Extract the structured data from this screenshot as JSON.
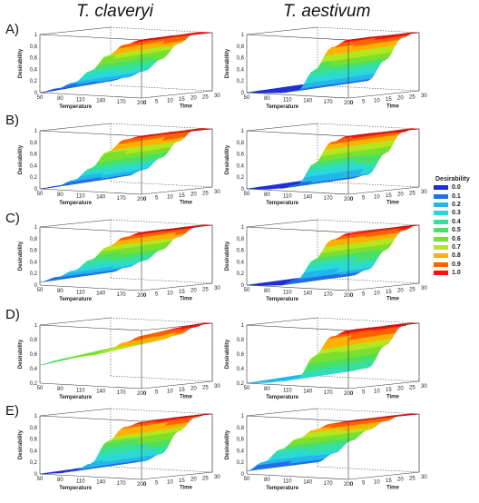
{
  "column_titles": [
    "T. claveryi",
    "T. aestivum"
  ],
  "row_labels": [
    "A)",
    "B)",
    "C)",
    "D)",
    "E)"
  ],
  "colors": {
    "0.0": "#1f2cd6",
    "0.1": "#1f6fe8",
    "0.2": "#22b6ea",
    "0.3": "#2ad8d8",
    "0.4": "#34e0a0",
    "0.5": "#4be062",
    "0.6": "#78e02e",
    "0.7": "#b4e61e",
    "0.8": "#ffb000",
    "0.9": "#ff6000",
    "1.0": "#ff1010"
  },
  "legend": {
    "title": "Desirability",
    "items": [
      "0.0",
      "0.1",
      "0.2",
      "0.3",
      "0.4",
      "0.5",
      "0.6",
      "0.7",
      "0.8",
      "0.9",
      "1.0"
    ]
  },
  "chart_data": [
    {
      "panel": "A) T. claveryi",
      "type": "surface",
      "zlabel": "Desirability",
      "xlabel": "Temperature",
      "ylabel": "Time",
      "zticks": [
        "0",
        "0,2",
        "0,4",
        "0,6",
        "0,8",
        "1"
      ],
      "xticks": [
        "50",
        "80",
        "110",
        "140",
        "170",
        "200"
      ],
      "yticks": [
        "0",
        "5",
        "10",
        "15",
        "20",
        "25",
        "30"
      ],
      "zlim": [
        0,
        1
      ],
      "xlim": [
        50,
        200
      ],
      "ylim": [
        0,
        30
      ],
      "profile": [
        0.0,
        0.08,
        0.2,
        0.42,
        0.7,
        0.9,
        1.0
      ],
      "time_effect": 0.08
    },
    {
      "panel": "A) T. aestivum",
      "type": "surface",
      "zlabel": "Desirability",
      "xlabel": "Temperature",
      "ylabel": "Time",
      "zticks": [
        "0",
        "0,2",
        "0,4",
        "0,6",
        "0,8",
        "1"
      ],
      "xticks": [
        "50",
        "80",
        "110",
        "140",
        "170",
        "200"
      ],
      "yticks": [
        "0",
        "5",
        "10",
        "15",
        "20",
        "25",
        "30"
      ],
      "zlim": [
        0,
        1
      ],
      "xlim": [
        50,
        200
      ],
      "ylim": [
        0,
        30
      ],
      "profile": [
        0.0,
        0.01,
        0.03,
        0.08,
        0.45,
        0.85,
        1.0
      ],
      "time_effect": 0.05
    },
    {
      "panel": "B) T. claveryi",
      "type": "surface",
      "zlabel": "Desirability",
      "xlabel": "Temperature",
      "ylabel": "Time",
      "zticks": [
        "0",
        "0,2",
        "0,4",
        "0,6",
        "0,8",
        "1"
      ],
      "xticks": [
        "50",
        "80",
        "110",
        "140",
        "170",
        "200"
      ],
      "yticks": [
        "0",
        "5",
        "10",
        "15",
        "20",
        "25",
        "30"
      ],
      "zlim": [
        0,
        1
      ],
      "xlim": [
        50,
        200
      ],
      "ylim": [
        0,
        30
      ],
      "profile": [
        0.0,
        0.06,
        0.18,
        0.4,
        0.7,
        0.92,
        1.0
      ],
      "time_effect": 0.06
    },
    {
      "panel": "B) T. aestivum",
      "type": "surface",
      "zlabel": "Desirability",
      "xlabel": "Temperature",
      "ylabel": "Time",
      "zticks": [
        "0",
        "0,2",
        "0,4",
        "0,6",
        "0,8",
        "1"
      ],
      "xticks": [
        "50",
        "80",
        "110",
        "140",
        "170",
        "200"
      ],
      "yticks": [
        "0",
        "5",
        "10",
        "15",
        "20",
        "25",
        "30"
      ],
      "zlim": [
        0,
        1
      ],
      "xlim": [
        50,
        200
      ],
      "ylim": [
        0,
        30
      ],
      "profile": [
        0.0,
        0.01,
        0.04,
        0.12,
        0.5,
        0.88,
        1.0
      ],
      "time_effect": 0.05
    },
    {
      "panel": "C) T. claveryi",
      "type": "surface",
      "zlabel": "Desirability",
      "xlabel": "Temperature",
      "ylabel": "Time",
      "zticks": [
        "0",
        "0,2",
        "0,4",
        "0,6",
        "0,8",
        "1"
      ],
      "xticks": [
        "50",
        "80",
        "110",
        "140",
        "170",
        "200"
      ],
      "yticks": [
        "0",
        "5",
        "10",
        "15",
        "20",
        "25",
        "30"
      ],
      "zlim": [
        0,
        1
      ],
      "xlim": [
        50,
        200
      ],
      "ylim": [
        0,
        30
      ],
      "profile": [
        0.05,
        0.15,
        0.28,
        0.48,
        0.72,
        0.9,
        1.0
      ],
      "time_effect": 0.05
    },
    {
      "panel": "C) T. aestivum",
      "type": "surface",
      "zlabel": "Desirability",
      "xlabel": "Temperature",
      "ylabel": "Time",
      "zticks": [
        "0",
        "0,2",
        "0,4",
        "0,6",
        "0,8",
        "1"
      ],
      "xticks": [
        "50",
        "80",
        "110",
        "140",
        "170",
        "200"
      ],
      "yticks": [
        "0",
        "5",
        "10",
        "15",
        "20",
        "25",
        "30"
      ],
      "zlim": [
        0,
        1
      ],
      "xlim": [
        50,
        200
      ],
      "ylim": [
        0,
        30
      ],
      "profile": [
        0.0,
        0.01,
        0.03,
        0.15,
        0.5,
        0.85,
        0.98
      ],
      "time_effect": 0.04
    },
    {
      "panel": "D) T. claveryi",
      "type": "surface",
      "zlabel": "Desirability",
      "xlabel": "Temperature",
      "ylabel": "Time",
      "zticks": [
        "0,2",
        "0,4",
        "0,6",
        "0,8",
        "1"
      ],
      "xticks": [
        "50",
        "80",
        "110",
        "140",
        "170",
        "200"
      ],
      "yticks": [
        "0",
        "5",
        "10",
        "15",
        "20",
        "25",
        "30"
      ],
      "zlim": [
        0.2,
        1
      ],
      "xlim": [
        50,
        200
      ],
      "ylim": [
        0,
        30
      ],
      "profile": [
        0.45,
        0.52,
        0.58,
        0.62,
        0.7,
        0.82,
        0.92
      ],
      "time_effect": 0.12
    },
    {
      "panel": "D) T. aestivum",
      "type": "surface",
      "zlabel": "Desirability",
      "xlabel": "Temperature",
      "ylabel": "Time",
      "zticks": [
        "0,2",
        "0,4",
        "0,6",
        "0,8",
        "1"
      ],
      "xticks": [
        "50",
        "80",
        "110",
        "140",
        "170",
        "200"
      ],
      "yticks": [
        "0",
        "5",
        "10",
        "15",
        "20",
        "25",
        "30"
      ],
      "zlim": [
        0.2,
        1
      ],
      "xlim": [
        50,
        200
      ],
      "ylim": [
        0,
        30
      ],
      "profile": [
        0.2,
        0.22,
        0.25,
        0.3,
        0.62,
        0.9,
        1.0
      ],
      "time_effect": 0.05
    },
    {
      "panel": "E) T. claveryi",
      "type": "surface",
      "zlabel": "Desirability",
      "xlabel": "Temperature",
      "ylabel": "Time",
      "zticks": [
        "0",
        "0,2",
        "0,4",
        "0,6",
        "0,8",
        "1"
      ],
      "xticks": [
        "50",
        "80",
        "110",
        "140",
        "170",
        "200"
      ],
      "yticks": [
        "0",
        "5",
        "10",
        "15",
        "20",
        "25",
        "30"
      ],
      "zlim": [
        0,
        1
      ],
      "xlim": [
        50,
        200
      ],
      "ylim": [
        0,
        30
      ],
      "profile": [
        0.0,
        0.03,
        0.08,
        0.22,
        0.62,
        0.88,
        0.98
      ],
      "time_effect": 0.05
    },
    {
      "panel": "E) T. aestivum",
      "type": "surface",
      "zlabel": "Desirability",
      "xlabel": "Temperature",
      "ylabel": "Time",
      "zticks": [
        "0",
        "0,2",
        "0,4",
        "0,6",
        "0,8",
        "1"
      ],
      "xticks": [
        "50",
        "80",
        "110",
        "140",
        "170",
        "200"
      ],
      "yticks": [
        "0",
        "5",
        "10",
        "15",
        "20",
        "25",
        "30"
      ],
      "zlim": [
        0,
        1
      ],
      "xlim": [
        50,
        200
      ],
      "ylim": [
        0,
        30
      ],
      "profile": [
        0.05,
        0.22,
        0.45,
        0.65,
        0.82,
        0.94,
        1.0
      ],
      "time_effect": 0.03
    }
  ]
}
